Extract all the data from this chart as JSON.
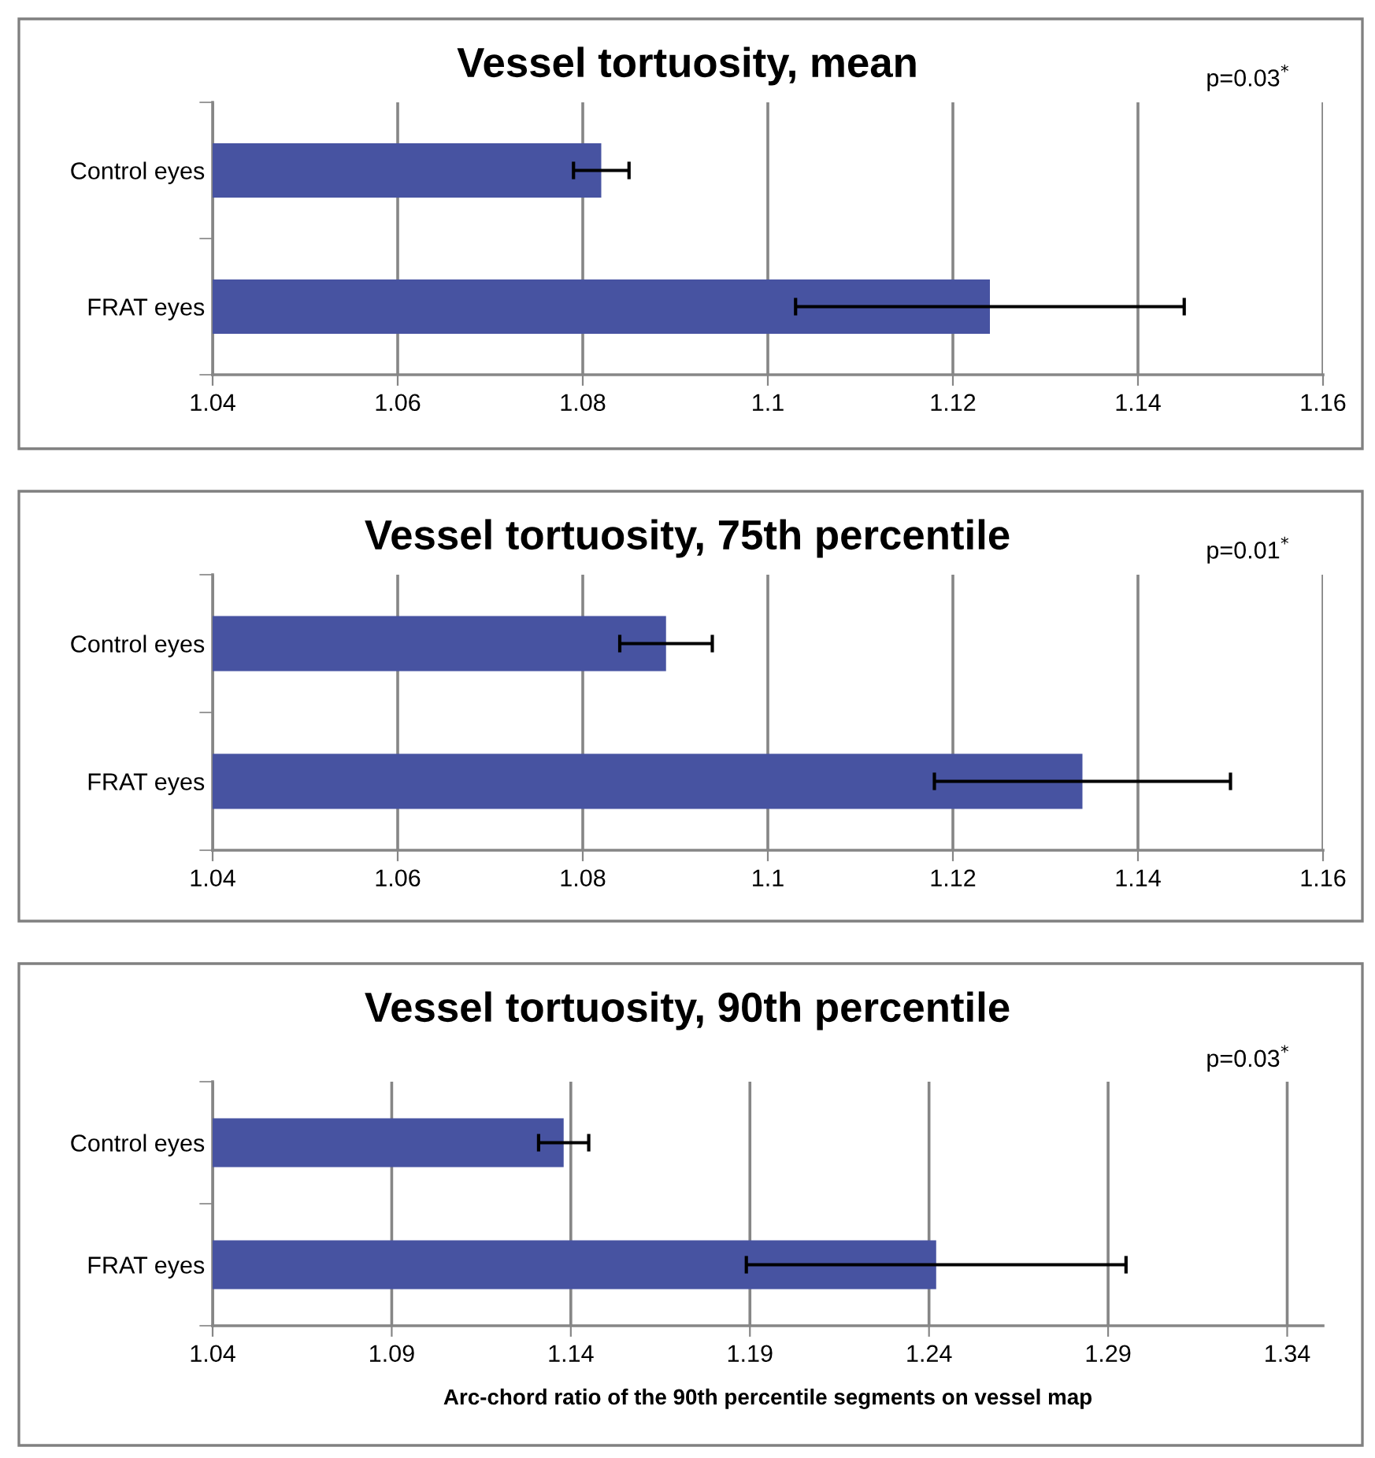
{
  "chart_data": [
    {
      "type": "bar",
      "orientation": "horizontal",
      "title": "Vessel tortuosity, mean",
      "categories": [
        "Control eyes",
        "FRAT eyes"
      ],
      "series": [
        {
          "color": "#4753a1",
          "values": [
            1.082,
            1.124
          ],
          "errors": [
            0.003,
            0.021
          ]
        }
      ],
      "xlim": [
        1.04,
        1.16
      ],
      "xticks": [
        1.04,
        1.06,
        1.08,
        1.1,
        1.12,
        1.14,
        1.16
      ],
      "grid": "x",
      "legend": false,
      "annotations": [
        "p=0.03$^{*}$"
      ]
    },
    {
      "type": "bar",
      "orientation": "horizontal",
      "title": "Vessel tortuosity, 75th percentile",
      "categories": [
        "Control eyes",
        "FRAT eyes"
      ],
      "series": [
        {
          "color": "#4753a1",
          "values": [
            1.089,
            1.134
          ],
          "errors": [
            0.005,
            0.016
          ]
        }
      ],
      "xlim": [
        1.04,
        1.16
      ],
      "xticks": [
        1.04,
        1.06,
        1.08,
        1.1,
        1.12,
        1.14,
        1.16
      ],
      "grid": "x",
      "legend": false,
      "annotations": [
        "p=0.01$^{*}$"
      ]
    },
    {
      "type": "bar",
      "orientation": "horizontal",
      "title": "Vessel tortuosity, 90th percentile",
      "categories": [
        "Control eyes",
        "FRAT eyes"
      ],
      "series": [
        {
          "color": "#4753a1",
          "values": [
            1.138,
            1.242
          ],
          "errors": [
            0.007,
            0.053
          ]
        }
      ],
      "xlim": [
        1.04,
        1.35
      ],
      "xticks": [
        1.04,
        1.09,
        1.14,
        1.19,
        1.24,
        1.29,
        1.34
      ],
      "grid": "x",
      "legend": false,
      "xlabel": "Arc-chord ratio of the 90th percentile segments on vessel map",
      "annotations": [
        "p=0.03$^{*}$"
      ]
    }
  ]
}
